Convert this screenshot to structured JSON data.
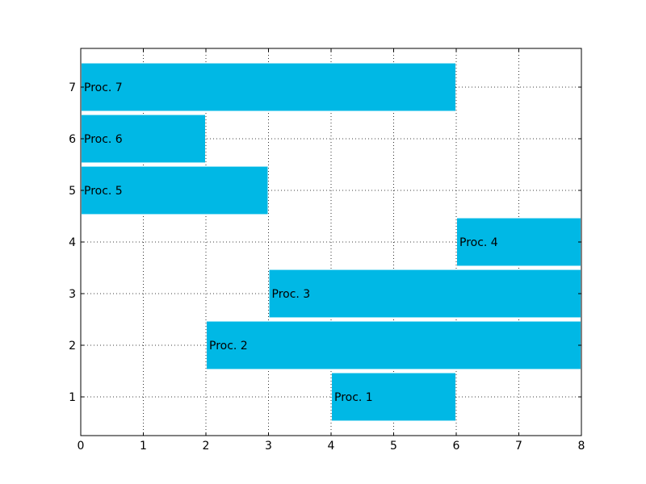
{
  "chart_data": {
    "type": "bar",
    "orientation": "horizontal",
    "title": "",
    "xlabel": "",
    "ylabel": "",
    "xlim": [
      0,
      8
    ],
    "ylim": [
      0.25,
      7.75
    ],
    "xticks": [
      "0",
      "1",
      "2",
      "3",
      "4",
      "5",
      "6",
      "7",
      "8"
    ],
    "yticks": [
      "1",
      "2",
      "3",
      "4",
      "5",
      "6",
      "7"
    ],
    "grid": true,
    "bar_color": "#00b8e5",
    "bars": [
      {
        "label": "Proc. 1",
        "y": 1,
        "start": 4,
        "end": 6
      },
      {
        "label": "Proc. 2",
        "y": 2,
        "start": 2,
        "end": 8
      },
      {
        "label": "Proc. 3",
        "y": 3,
        "start": 3,
        "end": 8
      },
      {
        "label": "Proc. 4",
        "y": 4,
        "start": 6,
        "end": 8
      },
      {
        "label": "Proc. 5",
        "y": 5,
        "start": 0,
        "end": 3
      },
      {
        "label": "Proc. 6",
        "y": 6,
        "start": 0,
        "end": 2
      },
      {
        "label": "Proc. 7",
        "y": 7,
        "start": 0,
        "end": 6
      }
    ]
  }
}
